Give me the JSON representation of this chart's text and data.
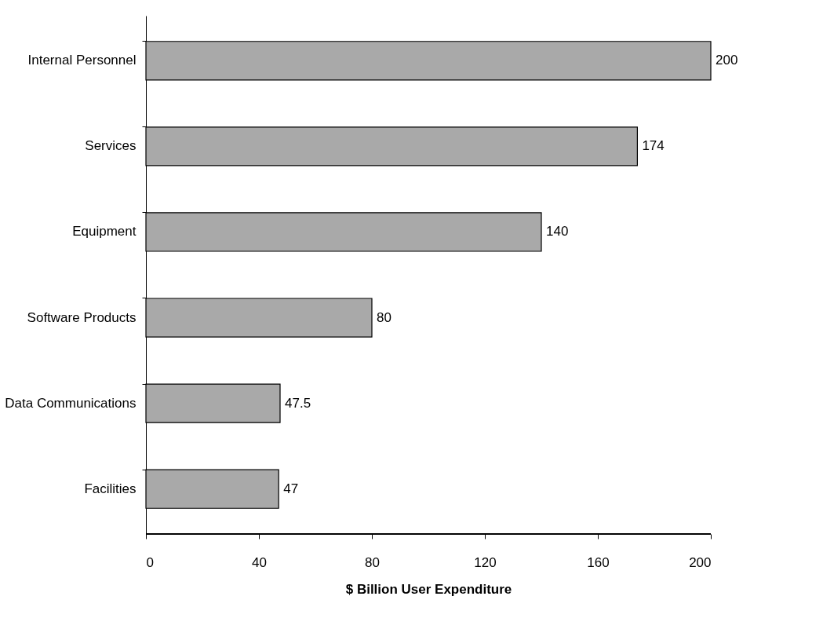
{
  "chart_data": {
    "type": "bar",
    "orientation": "horizontal",
    "xlabel": "$ Billion User Expenditure",
    "categories": [
      "Internal Personnel",
      "Services",
      "Equipment",
      "Software Products",
      "Data Communications",
      "Facilities"
    ],
    "values": [
      200,
      174,
      140,
      80,
      47.5,
      47
    ],
    "color": "#a9a9a9",
    "xlim": [
      0,
      200
    ],
    "xticks": [
      0,
      40,
      80,
      120,
      160,
      200
    ],
    "data_labels": true,
    "grid": false
  }
}
